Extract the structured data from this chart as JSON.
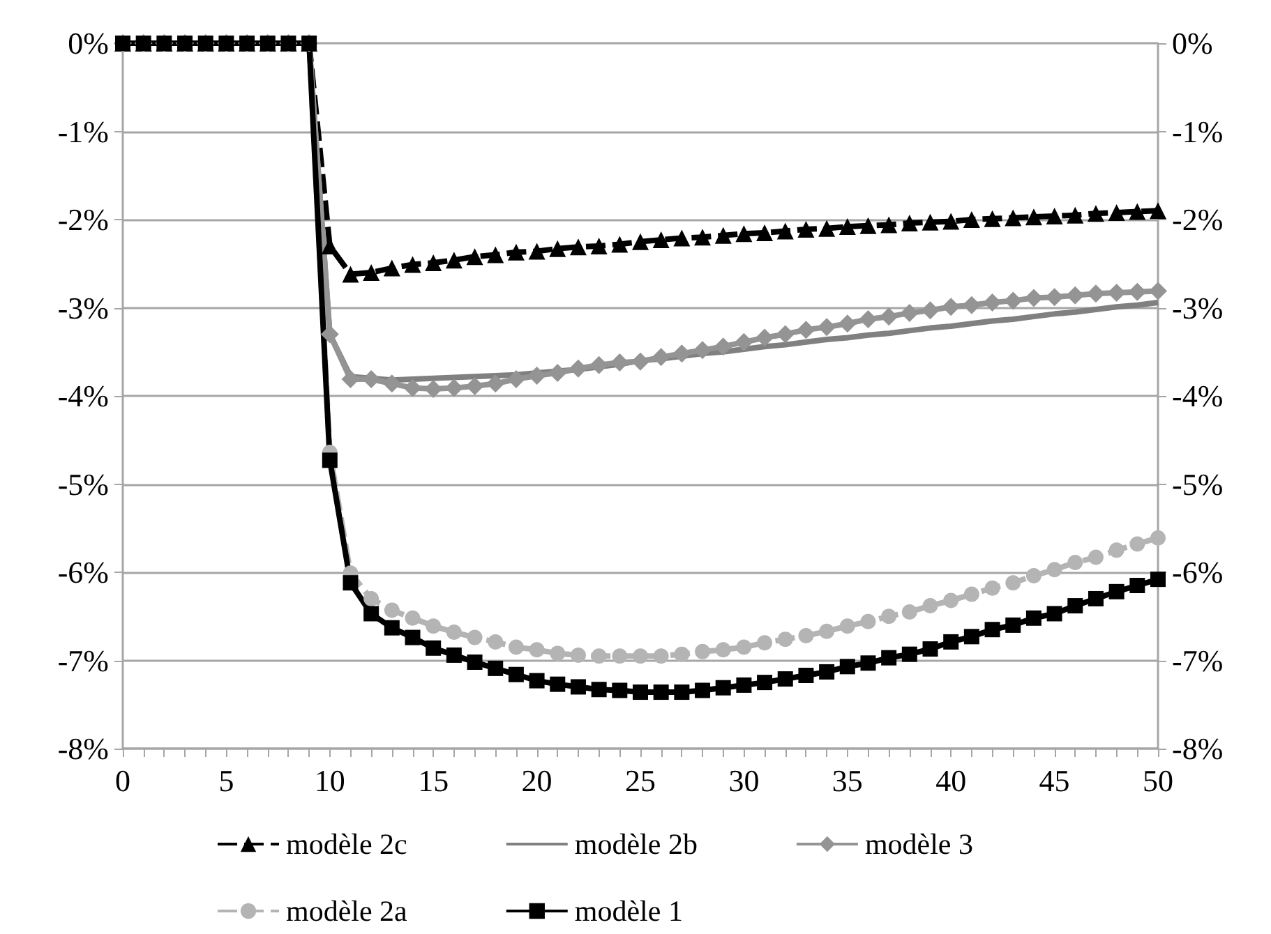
{
  "chart_data": {
    "type": "line",
    "x": [
      0,
      1,
      2,
      3,
      4,
      5,
      6,
      7,
      8,
      9,
      10,
      11,
      12,
      13,
      14,
      15,
      16,
      17,
      18,
      19,
      20,
      21,
      22,
      23,
      24,
      25,
      26,
      27,
      28,
      29,
      30,
      31,
      32,
      33,
      34,
      35,
      36,
      37,
      38,
      39,
      40,
      41,
      42,
      43,
      44,
      45,
      46,
      47,
      48,
      49,
      50
    ],
    "series": [
      {
        "name": "modèle 2c",
        "color": "#000000",
        "marker": "triangle",
        "line_style": "dashed",
        "values": [
          0,
          0,
          0,
          0,
          0,
          0,
          0,
          0,
          0,
          0,
          -2.3,
          -2.62,
          -2.6,
          -2.55,
          -2.51,
          -2.49,
          -2.46,
          -2.42,
          -2.4,
          -2.37,
          -2.36,
          -2.33,
          -2.31,
          -2.3,
          -2.28,
          -2.25,
          -2.23,
          -2.21,
          -2.2,
          -2.18,
          -2.16,
          -2.15,
          -2.13,
          -2.11,
          -2.1,
          -2.08,
          -2.07,
          -2.06,
          -2.04,
          -2.03,
          -2.02,
          -2.0,
          -1.99,
          -1.98,
          -1.97,
          -1.96,
          -1.95,
          -1.93,
          -1.92,
          -1.91,
          -1.9
        ]
      },
      {
        "name": "modèle 2b",
        "color": "#808080",
        "marker": "none",
        "line_style": "solid",
        "values": [
          0,
          0,
          0,
          0,
          0,
          0,
          0,
          0,
          0,
          0,
          -3.3,
          -3.78,
          -3.8,
          -3.82,
          -3.81,
          -3.8,
          -3.79,
          -3.78,
          -3.77,
          -3.76,
          -3.74,
          -3.72,
          -3.7,
          -3.67,
          -3.64,
          -3.6,
          -3.58,
          -3.55,
          -3.52,
          -3.5,
          -3.47,
          -3.44,
          -3.42,
          -3.39,
          -3.36,
          -3.34,
          -3.31,
          -3.29,
          -3.26,
          -3.23,
          -3.21,
          -3.18,
          -3.15,
          -3.13,
          -3.1,
          -3.07,
          -3.05,
          -3.02,
          -2.99,
          -2.97,
          -2.94
        ]
      },
      {
        "name": "modèle 3",
        "color": "#949494",
        "marker": "diamond",
        "line_style": "solid",
        "values": [
          0,
          0,
          0,
          0,
          0,
          0,
          0,
          0,
          0,
          0,
          -3.3,
          -3.81,
          -3.81,
          -3.86,
          -3.91,
          -3.92,
          -3.91,
          -3.89,
          -3.86,
          -3.81,
          -3.77,
          -3.74,
          -3.69,
          -3.65,
          -3.62,
          -3.61,
          -3.56,
          -3.52,
          -3.48,
          -3.44,
          -3.39,
          -3.34,
          -3.3,
          -3.25,
          -3.22,
          -3.18,
          -3.13,
          -3.1,
          -3.06,
          -3.03,
          -2.99,
          -2.97,
          -2.94,
          -2.92,
          -2.89,
          -2.88,
          -2.86,
          -2.84,
          -2.83,
          -2.82,
          -2.81
        ]
      },
      {
        "name": "modèle 2a",
        "color": "#b4b4b4",
        "marker": "circle",
        "line_style": "dashed",
        "values": [
          0,
          0,
          0,
          0,
          0,
          0,
          0,
          0,
          0,
          0,
          -4.64,
          -6.01,
          -6.3,
          -6.43,
          -6.52,
          -6.61,
          -6.68,
          -6.74,
          -6.79,
          -6.85,
          -6.88,
          -6.92,
          -6.94,
          -6.95,
          -6.95,
          -6.95,
          -6.95,
          -6.93,
          -6.9,
          -6.88,
          -6.85,
          -6.8,
          -6.76,
          -6.72,
          -6.67,
          -6.61,
          -6.56,
          -6.5,
          -6.45,
          -6.38,
          -6.32,
          -6.25,
          -6.18,
          -6.12,
          -6.04,
          -5.97,
          -5.89,
          -5.83,
          -5.75,
          -5.68,
          -5.61
        ]
      },
      {
        "name": "modèle 1",
        "color": "#000000",
        "marker": "square",
        "line_style": "solid",
        "values": [
          0,
          0,
          0,
          0,
          0,
          0,
          0,
          0,
          0,
          0,
          -4.73,
          -6.12,
          -6.47,
          -6.63,
          -6.74,
          -6.86,
          -6.94,
          -7.02,
          -7.09,
          -7.16,
          -7.23,
          -7.27,
          -7.3,
          -7.33,
          -7.34,
          -7.36,
          -7.36,
          -7.36,
          -7.34,
          -7.31,
          -7.28,
          -7.25,
          -7.21,
          -7.17,
          -7.13,
          -7.07,
          -7.03,
          -6.97,
          -6.93,
          -6.87,
          -6.79,
          -6.73,
          -6.65,
          -6.6,
          -6.52,
          -6.47,
          -6.38,
          -6.3,
          -6.22,
          -6.15,
          -6.08
        ]
      }
    ],
    "xlim": [
      0,
      50
    ],
    "xticks": [
      0,
      {
        "value": 1,
        "label": null
      },
      {
        "value": 2,
        "label": null
      },
      {
        "value": 3,
        "label": null
      },
      {
        "value": 4,
        "label": null
      },
      5,
      {
        "value": 6,
        "label": null
      },
      {
        "value": 7,
        "label": null
      },
      {
        "value": 8,
        "label": null
      },
      {
        "value": 9,
        "label": null
      },
      10,
      {
        "value": 11,
        "label": null
      },
      {
        "value": 12,
        "label": null
      },
      {
        "value": 13,
        "label": null
      },
      {
        "value": 14,
        "label": null
      },
      15,
      {
        "value": 16,
        "label": null
      },
      {
        "value": 17,
        "label": null
      },
      {
        "value": 18,
        "label": null
      },
      {
        "value": 19,
        "label": null
      },
      20,
      {
        "value": 21,
        "label": null
      },
      {
        "value": 22,
        "label": null
      },
      {
        "value": 23,
        "label": null
      },
      {
        "value": 24,
        "label": null
      },
      25,
      {
        "value": 26,
        "label": null
      },
      {
        "value": 27,
        "label": null
      },
      {
        "value": 28,
        "label": null
      },
      {
        "value": 29,
        "label": null
      },
      30,
      {
        "value": 31,
        "label": null
      },
      {
        "value": 32,
        "label": null
      },
      {
        "value": 33,
        "label": null
      },
      {
        "value": 34,
        "label": null
      },
      35,
      {
        "value": 36,
        "label": null
      },
      {
        "value": 37,
        "label": null
      },
      {
        "value": 38,
        "label": null
      },
      {
        "value": 39,
        "label": null
      },
      40,
      {
        "value": 41,
        "label": null
      },
      {
        "value": 42,
        "label": null
      },
      {
        "value": 43,
        "label": null
      },
      {
        "value": 44,
        "label": null
      },
      45,
      {
        "value": 46,
        "label": null
      },
      {
        "value": 47,
        "label": null
      },
      {
        "value": 48,
        "label": null
      },
      {
        "value": 49,
        "label": null
      },
      50
    ],
    "ylim": [
      -8,
      0
    ],
    "yticks": [
      {
        "value": -8,
        "label": "-8%"
      },
      {
        "value": -7,
        "label": "-7%"
      },
      {
        "value": -6,
        "label": "-6%"
      },
      {
        "value": -5,
        "label": "-5%"
      },
      {
        "value": -4,
        "label": "-4%"
      },
      {
        "value": -3,
        "label": "-3%"
      },
      {
        "value": -2,
        "label": "-2%"
      },
      {
        "value": -1,
        "label": "-1%"
      },
      {
        "value": 0,
        "label": "0%"
      }
    ],
    "y2lim": [
      -8,
      0
    ],
    "y2ticks": [
      {
        "value": -8,
        "label": "-8%"
      },
      {
        "value": -7,
        "label": "-7%"
      },
      {
        "value": -6,
        "label": "-6%"
      },
      {
        "value": -5,
        "label": "-5%"
      },
      {
        "value": -4,
        "label": "-4%"
      },
      {
        "value": -3,
        "label": "-3%"
      },
      {
        "value": -2,
        "label": "-2%"
      },
      {
        "value": -1,
        "label": "-1%"
      },
      {
        "value": 0,
        "label": "0%"
      }
    ],
    "grid": "y",
    "legend": "bottom"
  }
}
